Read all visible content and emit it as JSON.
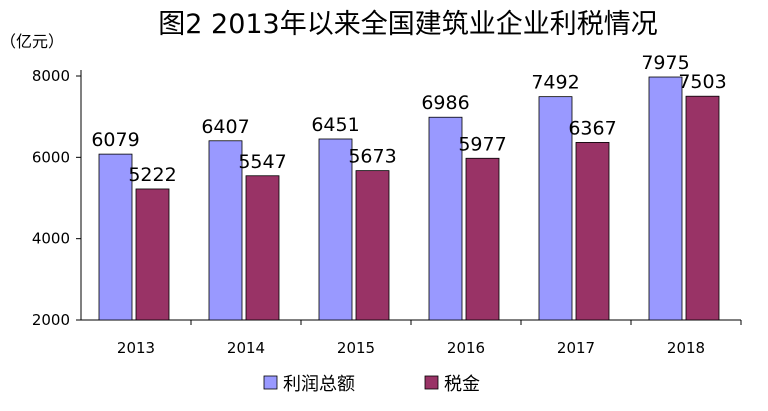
{
  "chart_data": {
    "type": "bar",
    "title": "图2 2013年以来全国建筑业企业利税情况",
    "unit_label": "（亿元）",
    "categories": [
      "2013",
      "2014",
      "2015",
      "2016",
      "2017",
      "2018"
    ],
    "series": [
      {
        "name": "利润总额",
        "color": "#9999ff",
        "values": [
          6079,
          6407,
          6451,
          6986,
          7492,
          7975
        ]
      },
      {
        "name": "税金",
        "color": "#993366",
        "values": [
          5222,
          5547,
          5673,
          5977,
          6367,
          7503
        ]
      }
    ],
    "ylim": [
      2000,
      8000
    ],
    "yticks": [
      2000,
      4000,
      6000,
      8000
    ],
    "grid": false,
    "legend_position": "bottom"
  }
}
